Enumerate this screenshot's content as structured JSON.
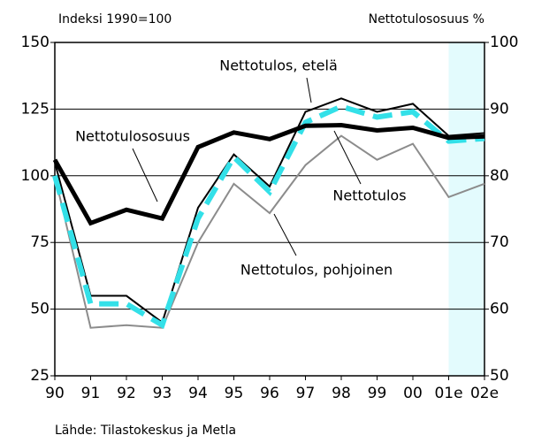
{
  "chart_data": {
    "type": "line",
    "y_label": "Indeksi 1990=100",
    "y2_label": "Nettotulososuus %",
    "source": "Lähde: Tilastokeskus ja Metla",
    "categories": [
      "90",
      "91",
      "92",
      "93",
      "94",
      "95",
      "96",
      "97",
      "98",
      "99",
      "00",
      "01e",
      "02e"
    ],
    "ylim": [
      25,
      150
    ],
    "yticks": [
      25,
      50,
      75,
      100,
      125,
      150
    ],
    "y2lim": [
      50,
      100
    ],
    "y2ticks": [
      50,
      60,
      70,
      80,
      90,
      100
    ],
    "grid": true,
    "series": [
      {
        "name": "Nettotulos, pohjoinen",
        "color": "#8c8c8c",
        "values": [
          100,
          43,
          44,
          43,
          75,
          97,
          86,
          104,
          115,
          106,
          112,
          92,
          97
        ]
      },
      {
        "name": "Nettotulos, etelä",
        "color": "#000000",
        "values": [
          105,
          55,
          55,
          45,
          88,
          108,
          96,
          124,
          129,
          124,
          127,
          115,
          116
        ]
      },
      {
        "name": "Nettotulos",
        "color": "#33e0e8",
        "values": [
          100,
          52,
          52,
          44,
          84,
          107,
          94,
          120,
          126,
          122,
          124,
          113,
          114
        ]
      },
      {
        "name": "Nettotulososuus",
        "color": "#000000",
        "axis": "y2",
        "values": [
          82.4,
          72.9,
          74.9,
          73.6,
          84.3,
          86.5,
          85.5,
          87.5,
          87.6,
          86.8,
          87.2,
          85.7,
          85.9
        ]
      }
    ]
  }
}
